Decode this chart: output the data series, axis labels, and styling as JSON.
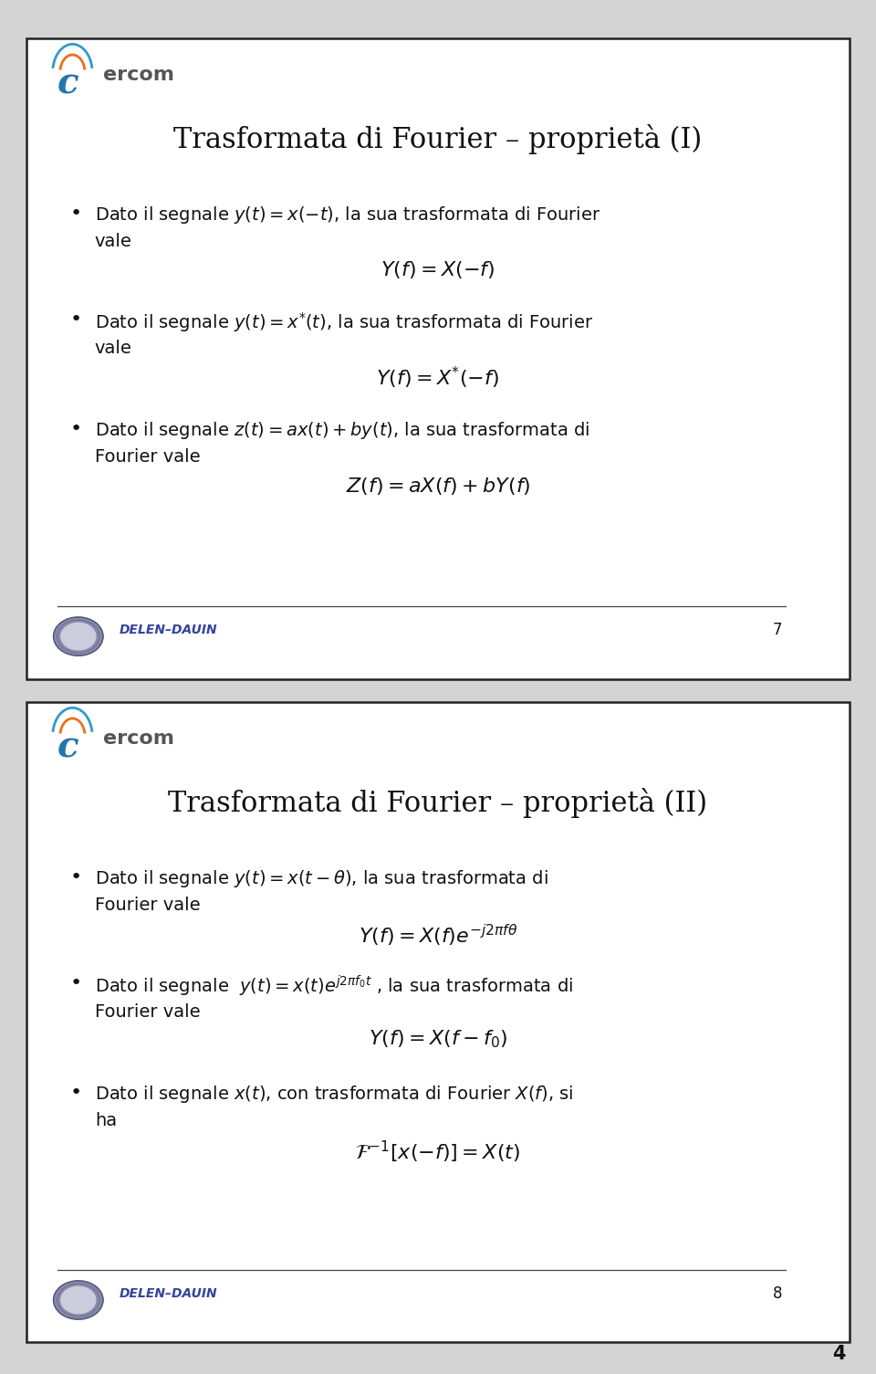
{
  "bg_color": "#d4d4d4",
  "slide_bg": "#ffffff",
  "slide_border": "#222222",
  "title1": "Trasformata di Fourier – proprietà (I)",
  "title2": "Trasformata di Fourier – proprietà (II)",
  "slide1_bullet1a": "Dato il segnale $y(t) = x(-t)$, la sua trasformata di Fourier",
  "slide1_bullet1b": "vale",
  "slide1_formula1": "$Y(f) = X(-f)$",
  "slide1_bullet2a": "Dato il segnale $y(t) = x^{*}(t)$, la sua trasformata di Fourier",
  "slide1_bullet2b": "vale",
  "slide1_formula2": "$Y(f) = X^{*}(-f)$",
  "slide1_bullet3a": "Dato il segnale $z(t) = ax(t) + by(t)$, la sua trasformata di",
  "slide1_bullet3b": "Fourier vale",
  "slide1_formula3": "$Z(f) = aX(f) + bY(f)$",
  "slide2_bullet1a": "Dato il segnale $y(t) = x(t - \\theta)$, la sua trasformata di",
  "slide2_bullet1b": "Fourier vale",
  "slide2_formula1": "$Y(f) = X(f)e^{-j2\\pi f\\theta}$",
  "slide2_bullet2a": "Dato il segnale  $y(t) = x(t)e^{j2\\pi f_0 t}$ , la sua trasformata di",
  "slide2_bullet2b": "Fourier vale",
  "slide2_formula2": "$Y(f) = X(f - f_0)$",
  "slide2_bullet3a": "Dato il segnale $x(t)$, con trasformata di Fourier $X(f)$, si",
  "slide2_bullet3b": "ha",
  "slide2_formula3": "$\\mathcal{F}^{-1}[x(-f)] = X(t)$",
  "footer_text": "DELEN–DAUIN",
  "slide1_page": "7",
  "slide2_page": "8",
  "page_number": "4",
  "title_fontsize": 22,
  "bullet_fontsize": 14,
  "formula_fontsize": 16,
  "footer_fontsize": 10,
  "cercom_blue": "#3399cc",
  "cercom_orange": "#e87020",
  "cercom_gray": "#666666",
  "footer_color": "#334499",
  "seal_color": "#8888aa"
}
